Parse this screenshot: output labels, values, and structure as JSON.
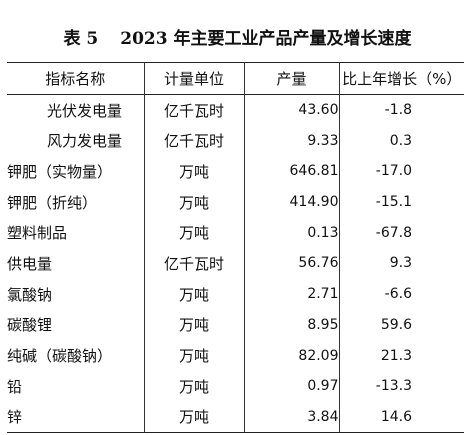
{
  "title": {
    "table_number": "表 5",
    "text": "2023 年主要工业产品产量及增长速度"
  },
  "table": {
    "headers": [
      "指标名称",
      "计量单位",
      "产量",
      "比上年增长（%）"
    ],
    "rows": [
      {
        "name": "光伏发电量",
        "indent": true,
        "unit": "亿千瓦时",
        "output": "43.60",
        "growth": "-1.8"
      },
      {
        "name": "风力发电量",
        "indent": true,
        "unit": "亿千瓦时",
        "output": "9.33",
        "growth": "0.3"
      },
      {
        "name": "钾肥（实物量）",
        "indent": false,
        "unit": "万吨",
        "output": "646.81",
        "growth": "-17.0"
      },
      {
        "name": "钾肥（折纯）",
        "indent": false,
        "unit": "万吨",
        "output": "414.90",
        "growth": "-15.1"
      },
      {
        "name": "塑料制品",
        "indent": false,
        "unit": "万吨",
        "output": "0.13",
        "growth": "-67.8"
      },
      {
        "name": "供电量",
        "indent": false,
        "unit": "亿千瓦时",
        "output": "56.76",
        "growth": "9.3"
      },
      {
        "name": "氯酸钠",
        "indent": false,
        "unit": "万吨",
        "output": "2.71",
        "growth": "-6.6"
      },
      {
        "name": "碳酸锂",
        "indent": false,
        "unit": "万吨",
        "output": "8.95",
        "growth": "59.6"
      },
      {
        "name": "纯碱（碳酸钠）",
        "indent": false,
        "unit": "万吨",
        "output": "82.09",
        "growth": "21.3"
      },
      {
        "name": "铅",
        "indent": false,
        "unit": "万吨",
        "output": "0.97",
        "growth": "-13.3"
      },
      {
        "name": "锌",
        "indent": false,
        "unit": "万吨",
        "output": "3.84",
        "growth": "14.6"
      }
    ]
  }
}
